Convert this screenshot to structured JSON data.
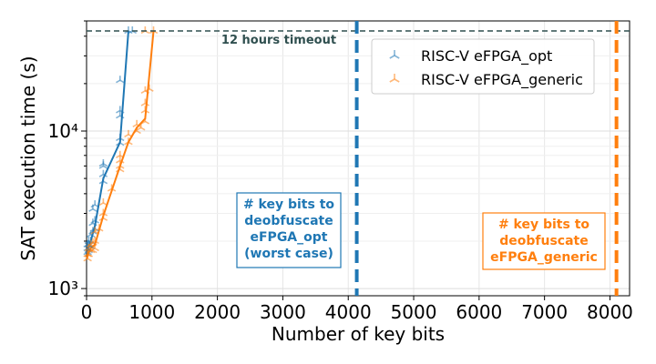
{
  "chart_data": {
    "type": "scatter",
    "x_scale": "linear",
    "y_scale": "log",
    "xlim": [
      0,
      8300
    ],
    "ylim": [
      900,
      50000
    ],
    "x_ticks": [
      0,
      1000,
      2000,
      3000,
      4000,
      5000,
      6000,
      7000,
      8000
    ],
    "x_tick_labels": [
      "0",
      "1000",
      "2000",
      "3000",
      "4000",
      "5000",
      "6000",
      "7000",
      "8000"
    ],
    "y_ticks": [
      1000,
      10000
    ],
    "y_tick_labels": [
      "10³",
      "10⁴"
    ],
    "xlabel": "Number of key bits",
    "ylabel": "SAT execution time (s)",
    "grid": true,
    "legend_position": "upper-right",
    "timeout": {
      "value": 43200,
      "label": "12 hours timeout",
      "color": "#2f4f4f"
    },
    "vlines": [
      {
        "x": 4130,
        "color": "#1f77b4",
        "label_lines": [
          "# key bits to",
          "deobfuscate",
          "eFPGA_opt",
          "(worst case)"
        ]
      },
      {
        "x": 8100,
        "color": "#ff7f0e",
        "label_lines": [
          "# key bits to",
          "deobfuscate",
          "eFPGA_generic"
        ]
      }
    ],
    "series": [
      {
        "name": "RISC-V eFPGA_opt",
        "color": "#1f77b4",
        "marker": "tri",
        "line_x": [
          16,
          32,
          64,
          128,
          256,
          512,
          640
        ],
        "line_y": [
          1700,
          1850,
          2000,
          2500,
          5000,
          8500,
          43200
        ],
        "points": [
          [
            16,
            1700
          ],
          [
            16,
            1800
          ],
          [
            16,
            1900
          ],
          [
            32,
            1750
          ],
          [
            32,
            1900
          ],
          [
            32,
            2000
          ],
          [
            64,
            1850
          ],
          [
            64,
            2000
          ],
          [
            64,
            2200
          ],
          [
            96,
            2300
          ],
          [
            96,
            2600
          ],
          [
            96,
            3200
          ],
          [
            128,
            2400
          ],
          [
            128,
            2700
          ],
          [
            128,
            3400
          ],
          [
            256,
            4800
          ],
          [
            256,
            5300
          ],
          [
            256,
            6000
          ],
          [
            256,
            6200
          ],
          [
            512,
            8400
          ],
          [
            512,
            9000
          ],
          [
            512,
            12500
          ],
          [
            512,
            13500
          ],
          [
            512,
            21000
          ],
          [
            640,
            43200
          ],
          [
            700,
            43200
          ]
        ]
      },
      {
        "name": "RISC-V eFPGA_generic",
        "color": "#ff7f0e",
        "marker": "tri",
        "line_x": [
          0,
          16,
          32,
          64,
          128,
          256,
          512,
          640,
          768,
          896,
          1024
        ],
        "line_y": [
          1550,
          1600,
          1700,
          1800,
          1900,
          2900,
          6000,
          8500,
          10500,
          12000,
          43200
        ],
        "points": [
          [
            16,
            1550
          ],
          [
            16,
            1650
          ],
          [
            32,
            1650
          ],
          [
            32,
            1800
          ],
          [
            64,
            1750
          ],
          [
            64,
            1900
          ],
          [
            96,
            1750
          ],
          [
            96,
            1950
          ],
          [
            128,
            1800
          ],
          [
            128,
            2000
          ],
          [
            128,
            2300
          ],
          [
            192,
            2400
          ],
          [
            256,
            2800
          ],
          [
            256,
            3000
          ],
          [
            256,
            3500
          ],
          [
            384,
            4300
          ],
          [
            512,
            5700
          ],
          [
            512,
            6000
          ],
          [
            512,
            6500
          ],
          [
            512,
            7000
          ],
          [
            640,
            8500
          ],
          [
            640,
            9500
          ],
          [
            768,
            10000
          ],
          [
            768,
            11000
          ],
          [
            832,
            10500
          ],
          [
            896,
            11500
          ],
          [
            896,
            13500
          ],
          [
            896,
            15000
          ],
          [
            896,
            18000
          ],
          [
            960,
            18500
          ],
          [
            896,
            43200
          ],
          [
            1024,
            43200
          ]
        ]
      }
    ]
  }
}
